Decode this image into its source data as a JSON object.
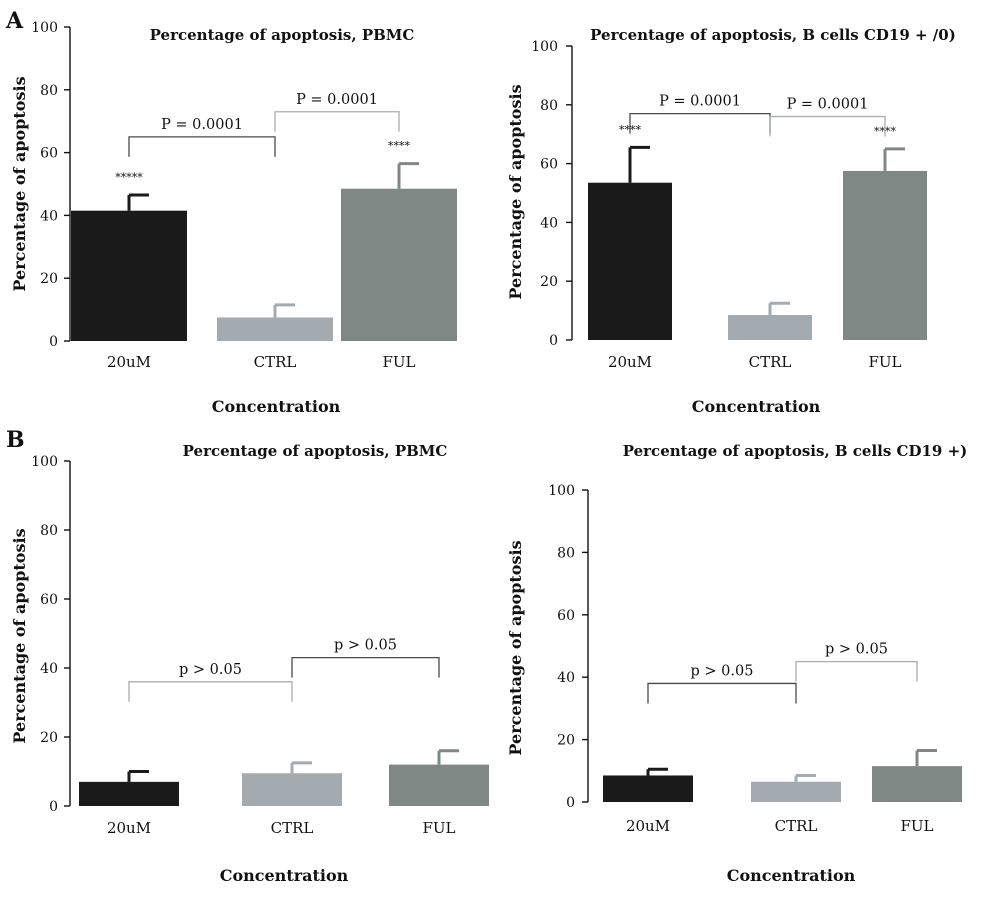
{
  "panels": [
    "A",
    "B"
  ],
  "colors": {
    "20uM": "#1a1a1a",
    "CTRL": "#a4abb0",
    "FUL": "#7f8885",
    "bracket": "#4a4a4a",
    "bracket_light": "#a9aeb1"
  },
  "chart_data": [
    {
      "panel": "A",
      "type": "bar",
      "title": "Percentage of apoptosis, PBMC",
      "xlabel": "Concentration",
      "ylabel": "Percentage of apoptosis",
      "ylim": [
        0,
        100
      ],
      "yticks": [
        "0",
        "20",
        "40",
        "60",
        "80",
        "100"
      ],
      "categories": [
        "20uM",
        "CTRL",
        "FUL"
      ],
      "values": [
        41.5,
        7.5,
        48.5
      ],
      "errors": [
        5,
        4,
        8
      ],
      "stars": [
        "*****",
        "",
        "****"
      ],
      "comparisons": [
        {
          "label": "P = 0.0001",
          "from": "20uM",
          "to": "CTRL",
          "y": 65
        },
        {
          "label": "P = 0.0001",
          "from": "CTRL",
          "to": "FUL",
          "y": 73
        }
      ]
    },
    {
      "panel": "A",
      "type": "bar",
      "title": "Percentage of apoptosis, B cells CD19 + /0)",
      "xlabel": "Concentration",
      "ylabel": "Percentage of apoptosis",
      "ylim": [
        0,
        100
      ],
      "yticks": [
        "0",
        "20",
        "40",
        "60",
        "80",
        "100"
      ],
      "categories": [
        "20uM",
        "CTRL",
        "FUL"
      ],
      "values": [
        53.5,
        8.5,
        57.5
      ],
      "errors": [
        12,
        4,
        7.5
      ],
      "stars": [
        "****",
        "",
        "****"
      ],
      "comparisons": [
        {
          "label": "P = 0.0001",
          "from": "20uM",
          "to": "CTRL",
          "y": 77
        },
        {
          "label": "P = 0.0001",
          "from": "CTRL",
          "to": "FUL",
          "y": 76
        }
      ]
    },
    {
      "panel": "B",
      "type": "bar",
      "title": "Percentage of apoptosis, PBMC",
      "xlabel": "Concentration",
      "ylabel": "Percentage of apoptosis",
      "ylim": [
        0,
        100
      ],
      "yticks": [
        "0",
        "20",
        "40",
        "60",
        "80",
        "100"
      ],
      "categories": [
        "20uM",
        "CTRL",
        "FUL"
      ],
      "values": [
        7,
        9.5,
        12
      ],
      "errors": [
        3,
        3,
        4
      ],
      "stars": [
        "",
        "",
        ""
      ],
      "comparisons": [
        {
          "label": "p > 0.05",
          "from": "20uM",
          "to": "CTRL",
          "y": 36
        },
        {
          "label": "p > 0.05",
          "from": "CTRL",
          "to": "FUL",
          "y": 43
        }
      ]
    },
    {
      "panel": "B",
      "type": "bar",
      "title": "Percentage of apoptosis, B cells CD19 +)",
      "xlabel": "Concentration",
      "ylabel": "Percentage of apoptosis",
      "ylim": [
        0,
        100
      ],
      "yticks": [
        "0",
        "20",
        "40",
        "60",
        "80",
        "100"
      ],
      "categories": [
        "20uM",
        "CTRL",
        "FUL"
      ],
      "values": [
        8.5,
        6.5,
        11.5
      ],
      "errors": [
        2,
        2,
        5
      ],
      "stars": [
        "",
        "",
        ""
      ],
      "comparisons": [
        {
          "label": "p > 0.05",
          "from": "20uM",
          "to": "CTRL",
          "y": 38
        },
        {
          "label": "p > 0.05",
          "from": "CTRL",
          "to": "FUL",
          "y": 45
        }
      ]
    }
  ]
}
